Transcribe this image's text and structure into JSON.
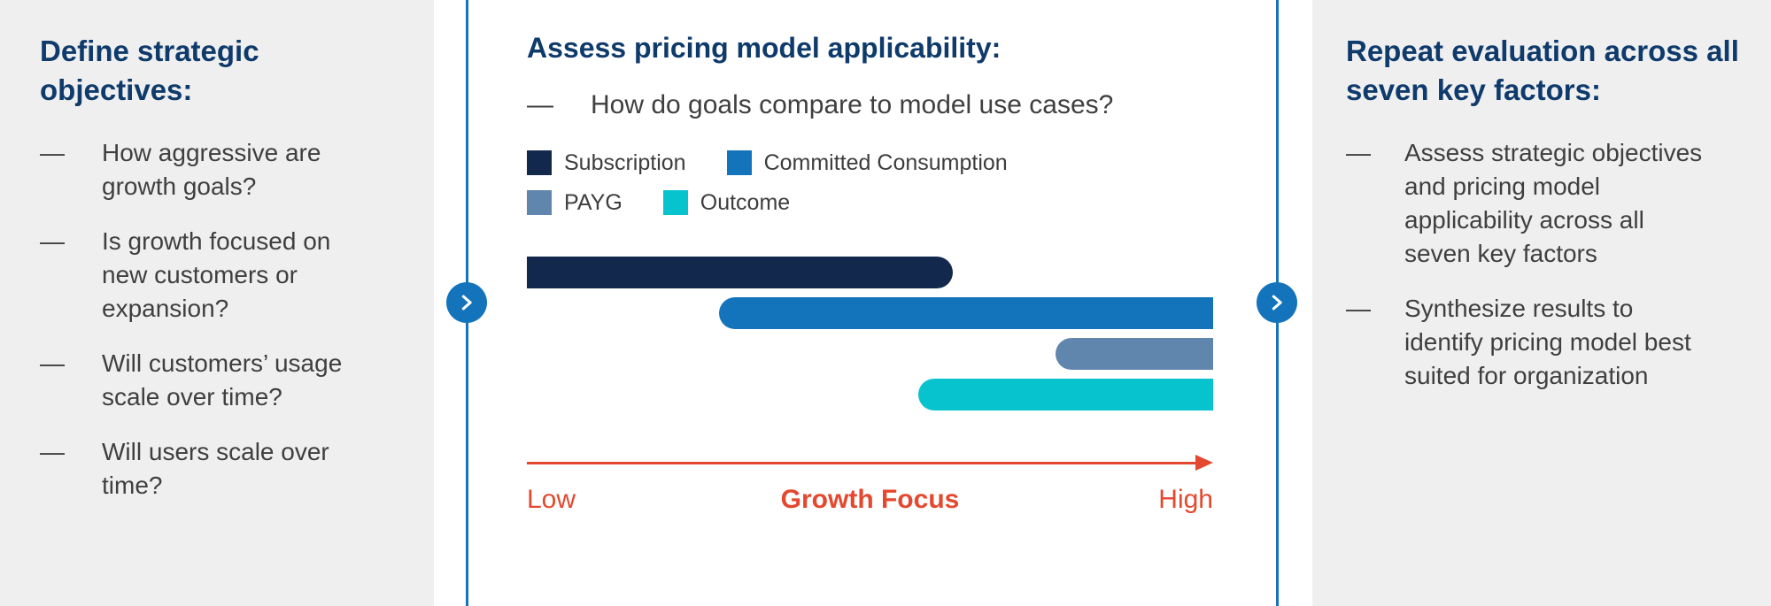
{
  "ui": {
    "dash": "—",
    "flow_icon": "chevron-right",
    "colors": {
      "heading_blue": "#0e3a6c",
      "accent_blue": "#1374bc",
      "body_gray": "#3f3f3f",
      "panel_gray": "#efefef",
      "axis_red": "#e4482e"
    }
  },
  "left_panel": {
    "heading": "Define strategic objectives:",
    "items": [
      "How aggressive are growth goals?",
      "Is growth focused on new customers or expansion?",
      "Will customers’ usage scale over time?",
      "Will users scale over time?"
    ]
  },
  "center_panel": {
    "heading": "Assess pricing model applicability:",
    "question": "How do goals compare to model use cases?",
    "legend": [
      {
        "label": "Subscription",
        "color": "#12284c"
      },
      {
        "label": "Committed Consumption",
        "color": "#1374bc"
      },
      {
        "label": "PAYG",
        "color": "#6186ad"
      },
      {
        "label": "Outcome",
        "color": "#06c3cd"
      }
    ],
    "axis": {
      "low": "Low",
      "title": "Growth Focus",
      "high": "High"
    }
  },
  "right_panel": {
    "heading": "Repeat evaluation across all seven key factors:",
    "items": [
      "Assess strategic objectives and pricing model applicability across all seven key factors",
      "Synthesize results to identify pricing model best suited for organization"
    ]
  },
  "chart_data": {
    "type": "bar",
    "orientation": "horizontal-range",
    "title": "Assess pricing model applicability",
    "xlabel": "Growth Focus",
    "axis": {
      "min_label": "Low",
      "max_label": "High",
      "range": [
        0,
        100
      ]
    },
    "series": [
      {
        "name": "Subscription",
        "start": 0,
        "end": 62,
        "color": "#12284c"
      },
      {
        "name": "Committed Consumption",
        "start": 28,
        "end": 100,
        "color": "#1374bc"
      },
      {
        "name": "PAYG",
        "start": 77,
        "end": 100,
        "color": "#6186ad"
      },
      {
        "name": "Outcome",
        "start": 57,
        "end": 100,
        "color": "#06c3cd"
      }
    ],
    "legend_position": "top",
    "grid": false
  }
}
